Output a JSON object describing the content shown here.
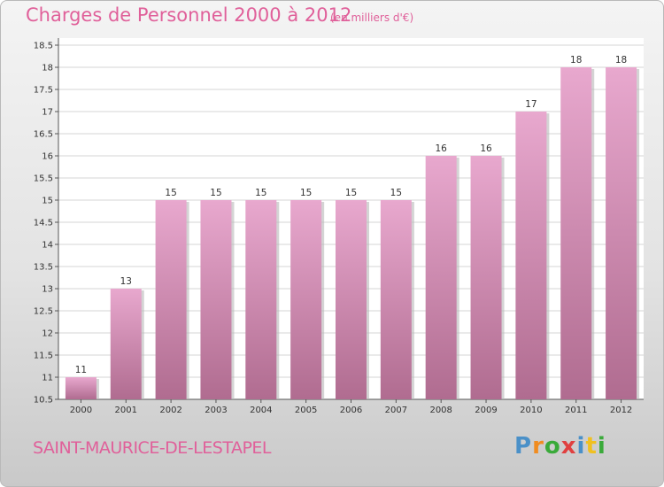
{
  "header": {
    "title": "Charges de Personnel 2000 à 2012",
    "unit": "(en milliers d'€)"
  },
  "footer": {
    "commune": "SAINT-MAURICE-DE-LESTAPEL",
    "logo_text": "Proxiti",
    "logo_colors": [
      "#4a90c8",
      "#f08c20",
      "#3aaa3a",
      "#e04040",
      "#4a90c8",
      "#f0c020",
      "#3aaa3a"
    ]
  },
  "colors": {
    "bar_light": "#e8a8ce",
    "bar_dark": "#b06c90",
    "text_accent": "#e0609a",
    "plot_bg": "#ffffff",
    "grid": "#d6d6d6"
  },
  "chart_data": {
    "type": "bar",
    "categories": [
      "2000",
      "2001",
      "2002",
      "2003",
      "2004",
      "2005",
      "2006",
      "2007",
      "2008",
      "2009",
      "2010",
      "2011",
      "2012"
    ],
    "values": [
      11,
      13,
      15,
      15,
      15,
      15,
      15,
      15,
      16,
      16,
      17,
      18,
      18
    ],
    "data_labels": [
      "11",
      "13",
      "15",
      "15",
      "15",
      "15",
      "15",
      "15",
      "16",
      "16",
      "17",
      "18",
      "18"
    ],
    "title": "Charges de Personnel 2000 à 2012",
    "subtitle": "(en milliers d'€)",
    "xlabel": "",
    "ylabel": "",
    "ylim": [
      10.5,
      18.5
    ],
    "yticks": [
      10.5,
      11,
      11.5,
      12,
      12.5,
      13,
      13.5,
      14,
      14.5,
      15,
      15.5,
      16,
      16.5,
      17,
      17.5,
      18,
      18.5
    ],
    "ytick_labels": [
      "10.5",
      "11",
      "11.5",
      "12",
      "12.5",
      "13",
      "13.5",
      "14",
      "14.5",
      "15",
      "15.5",
      "16",
      "16.5",
      "17",
      "17.5",
      "18",
      "18.5"
    ],
    "grid": true,
    "legend": "none"
  }
}
